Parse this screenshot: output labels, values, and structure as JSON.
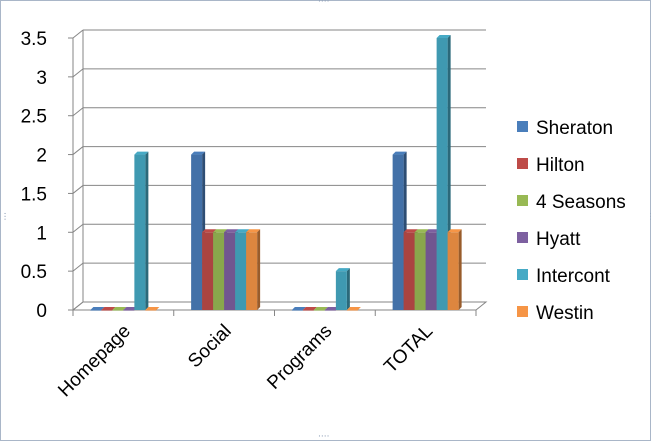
{
  "chart_data": {
    "type": "bar",
    "style": "3d-clustered-column",
    "categories": [
      "Homepage",
      "Social",
      "Programs",
      "TOTAL"
    ],
    "y_ticks": [
      "0",
      "0.5",
      "1",
      "1.5",
      "2",
      "2.5",
      "3",
      "3.5"
    ],
    "ylim": [
      0,
      3.5
    ],
    "grid": true,
    "legend_position": "right",
    "series": [
      {
        "name": "Sheraton",
        "color": "#4a7ebb",
        "values": [
          0,
          2,
          0,
          2
        ]
      },
      {
        "name": "Hilton",
        "color": "#be4b48",
        "values": [
          0,
          1,
          0,
          1
        ]
      },
      {
        "name": "4 Seasons",
        "color": "#98b954",
        "values": [
          0,
          1,
          0,
          1
        ]
      },
      {
        "name": "Hyatt",
        "color": "#7d60a0",
        "values": [
          0,
          1,
          0,
          1
        ]
      },
      {
        "name": "Intercont",
        "color": "#46aac5",
        "values": [
          2,
          1,
          0.5,
          3.5
        ]
      },
      {
        "name": "Westin",
        "color": "#f69546",
        "values": [
          0,
          1,
          0,
          1
        ]
      }
    ]
  }
}
